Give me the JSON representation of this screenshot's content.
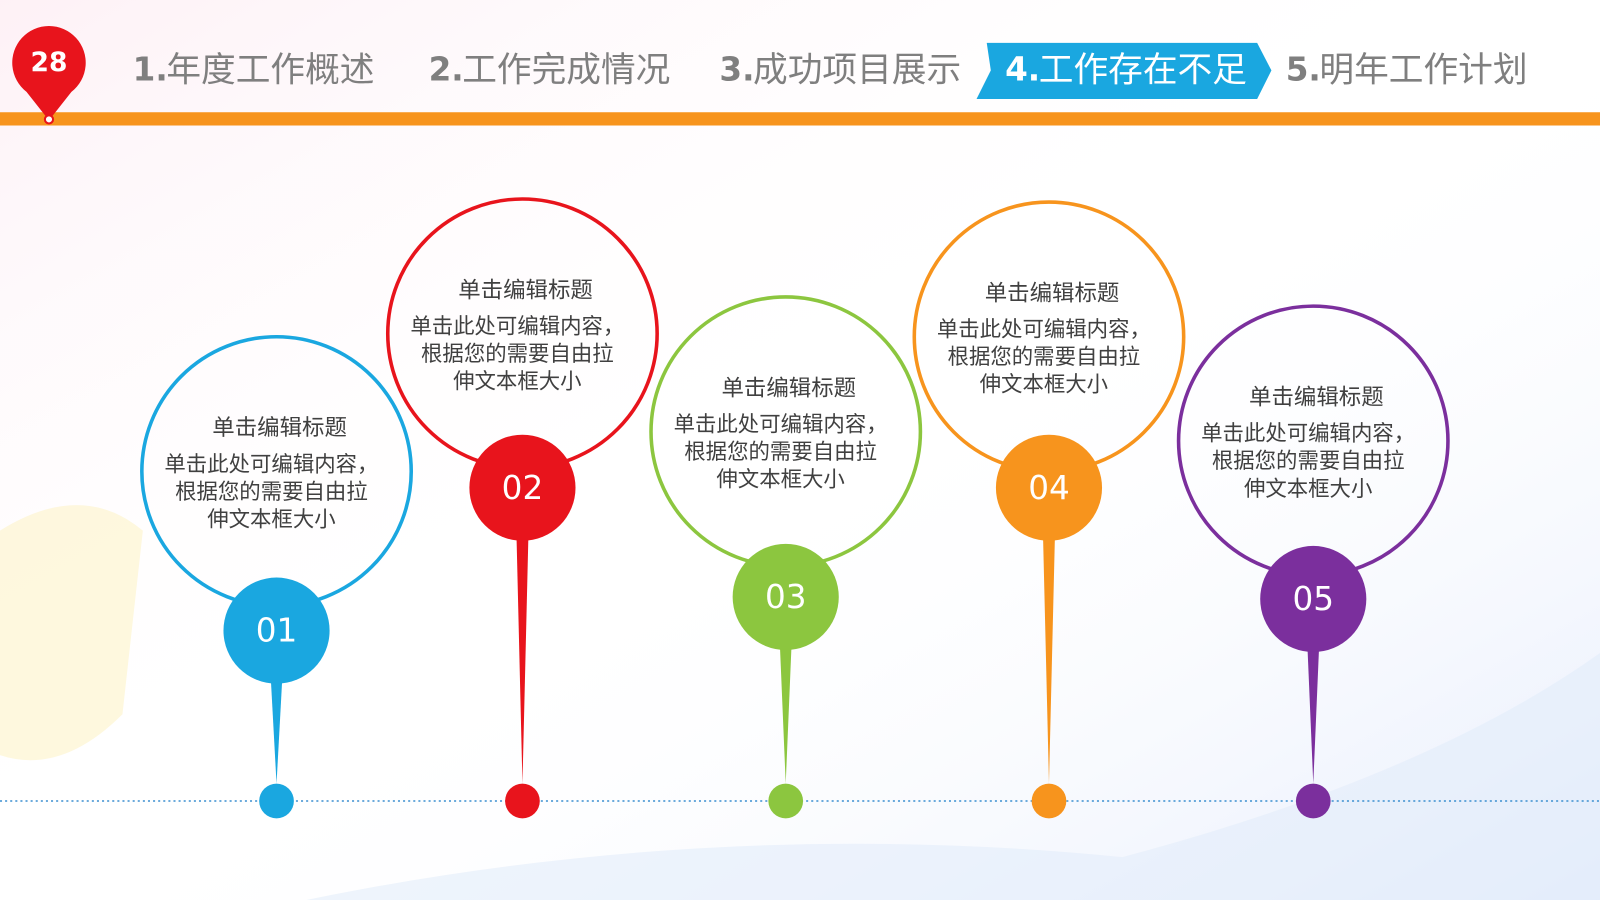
{
  "header": {
    "page_number": "28",
    "tabs": [
      {
        "number": "1.",
        "label": "年度工作概述",
        "active": false
      },
      {
        "number": "2.",
        "label": "工作完成情况",
        "active": false
      },
      {
        "number": "3.",
        "label": "成功项目展示",
        "active": false
      },
      {
        "number": "4.",
        "label": "工作存在不足",
        "active": true
      },
      {
        "number": "5.",
        "label": "明年工作计划",
        "active": false
      }
    ]
  },
  "items": [
    {
      "number": "01",
      "color": "#1aa7e0",
      "title": "单击编辑标题",
      "body": [
        "单击此处可编辑内容，",
        "根据您的需要自由拉",
        "伸文本框大小"
      ]
    },
    {
      "number": "02",
      "color": "#e8141c",
      "title": "单击编辑标题",
      "body": [
        "单击此处可编辑内容，",
        "根据您的需要自由拉",
        "伸文本框大小"
      ]
    },
    {
      "number": "03",
      "color": "#8cc63f",
      "title": "单击编辑标题",
      "body": [
        "单击此处可编辑内容，",
        "根据您的需要自由拉",
        "伸文本框大小"
      ]
    },
    {
      "number": "04",
      "color": "#f7941d",
      "title": "单击编辑标题",
      "body": [
        "单击此处可编辑内容，",
        "根据您的需要自由拉",
        "伸文本框大小"
      ]
    },
    {
      "number": "05",
      "color": "#7b2f9d",
      "title": "单击编辑标题",
      "body": [
        "单击此处可编辑内容，",
        "根据您的需要自由拉",
        "伸文本框大小"
      ]
    }
  ]
}
